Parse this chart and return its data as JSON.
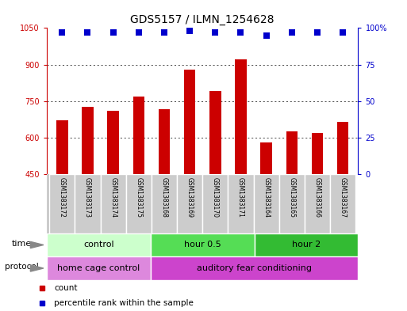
{
  "title": "GDS5157 / ILMN_1254628",
  "samples": [
    "GSM1383172",
    "GSM1383173",
    "GSM1383174",
    "GSM1383175",
    "GSM1383168",
    "GSM1383169",
    "GSM1383170",
    "GSM1383171",
    "GSM1383164",
    "GSM1383165",
    "GSM1383166",
    "GSM1383167"
  ],
  "counts": [
    670,
    725,
    710,
    770,
    715,
    880,
    790,
    920,
    580,
    625,
    620,
    665
  ],
  "percentiles": [
    97,
    97,
    97,
    97,
    97,
    98,
    97,
    97,
    95,
    97,
    97,
    97
  ],
  "ylim_left": [
    450,
    1050
  ],
  "ylim_right": [
    0,
    100
  ],
  "yticks_left": [
    450,
    600,
    750,
    900,
    1050
  ],
  "yticks_right": [
    0,
    25,
    50,
    75,
    100
  ],
  "ytick_labels_right": [
    "0",
    "25",
    "50",
    "75",
    "100%"
  ],
  "bar_color": "#cc0000",
  "dot_color": "#0000cc",
  "grid_color": "#000000",
  "time_groups": [
    {
      "label": "control",
      "start": 0,
      "end": 4,
      "color": "#ccffcc"
    },
    {
      "label": "hour 0.5",
      "start": 4,
      "end": 8,
      "color": "#55dd55"
    },
    {
      "label": "hour 2",
      "start": 8,
      "end": 12,
      "color": "#33bb33"
    }
  ],
  "protocol_groups": [
    {
      "label": "home cage control",
      "start": 0,
      "end": 4,
      "color": "#dd88dd"
    },
    {
      "label": "auditory fear conditioning",
      "start": 4,
      "end": 12,
      "color": "#cc44cc"
    }
  ],
  "legend_items": [
    {
      "color": "#cc0000",
      "label": "count"
    },
    {
      "color": "#0000cc",
      "label": "percentile rank within the sample"
    }
  ],
  "bar_width": 0.45,
  "dot_size": 6,
  "title_fontsize": 10,
  "tick_fontsize": 7,
  "label_fontsize": 8,
  "group_fontsize": 8,
  "sample_fontsize": 5.5,
  "legend_fontsize": 7.5,
  "bg_color": "#ffffff",
  "plot_bg": "#ffffff",
  "left_tick_color": "#cc0000",
  "right_tick_color": "#0000cc",
  "cell_bg": "#cccccc",
  "cell_border": "#ffffff"
}
